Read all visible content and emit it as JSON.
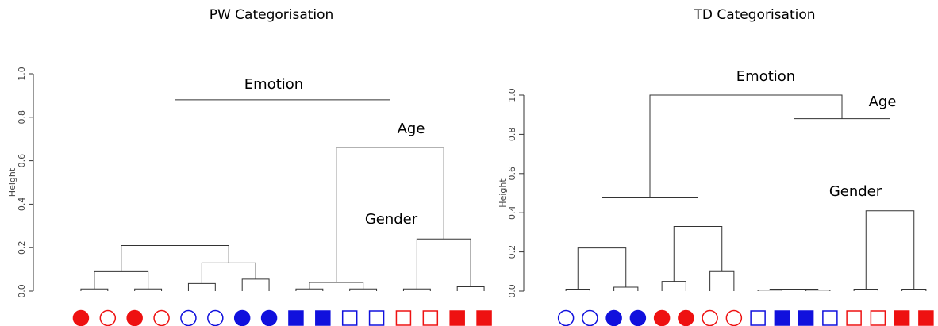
{
  "chart_data": [
    {
      "type": "dendrogram",
      "title": "PW Categorisation",
      "ylabel": "Height",
      "ylim": [
        0,
        1
      ],
      "yticks": [
        {
          "value": 0,
          "label": "0.0"
        },
        0.2,
        0.4,
        0.6,
        0.8,
        {
          "value": 1,
          "label": "1.0"
        }
      ],
      "annotations": [
        "Emotion",
        "Age",
        "Gender"
      ],
      "leaves": [
        {
          "shape": "circle",
          "fill": true,
          "color": "#ee1111"
        },
        {
          "shape": "circle",
          "fill": false,
          "color": "#ee1111"
        },
        {
          "shape": "circle",
          "fill": true,
          "color": "#ee1111"
        },
        {
          "shape": "circle",
          "fill": false,
          "color": "#ee1111"
        },
        {
          "shape": "circle",
          "fill": false,
          "color": "#1010dd"
        },
        {
          "shape": "circle",
          "fill": false,
          "color": "#1010dd"
        },
        {
          "shape": "circle",
          "fill": true,
          "color": "#1010dd"
        },
        {
          "shape": "circle",
          "fill": true,
          "color": "#1010dd"
        },
        {
          "shape": "square",
          "fill": true,
          "color": "#1010dd"
        },
        {
          "shape": "square",
          "fill": true,
          "color": "#1010dd"
        },
        {
          "shape": "square",
          "fill": false,
          "color": "#1010dd"
        },
        {
          "shape": "square",
          "fill": false,
          "color": "#1010dd"
        },
        {
          "shape": "square",
          "fill": false,
          "color": "#ee1111"
        },
        {
          "shape": "square",
          "fill": false,
          "color": "#ee1111"
        },
        {
          "shape": "square",
          "fill": true,
          "color": "#ee1111"
        },
        {
          "shape": "square",
          "fill": true,
          "color": "#ee1111"
        }
      ],
      "merges": [
        {
          "left": 0,
          "right": 1,
          "height": 0.01
        },
        {
          "left": 2,
          "right": 3,
          "height": 0.01
        },
        {
          "left": 16,
          "right": 17,
          "height": 0.09
        },
        {
          "left": 4,
          "right": 5,
          "height": 0.035
        },
        {
          "left": 6,
          "right": 7,
          "height": 0.055
        },
        {
          "left": 19,
          "right": 20,
          "height": 0.13
        },
        {
          "left": 18,
          "right": 21,
          "height": 0.21
        },
        {
          "left": 8,
          "right": 9,
          "height": 0.01
        },
        {
          "left": 10,
          "right": 11,
          "height": 0.01
        },
        {
          "left": 23,
          "right": 24,
          "height": 0.04
        },
        {
          "left": 12,
          "right": 13,
          "height": 0.01
        },
        {
          "left": 14,
          "right": 15,
          "height": 0.02
        },
        {
          "left": 26,
          "right": 27,
          "height": 0.24
        },
        {
          "left": 25,
          "right": 28,
          "height": 0.66
        },
        {
          "left": 22,
          "right": 29,
          "height": 0.88
        }
      ]
    },
    {
      "type": "dendrogram",
      "title": "TD Categorisation",
      "ylabel": "Height",
      "ylim": [
        0,
        1
      ],
      "yticks": [
        {
          "value": 0,
          "label": "0.0"
        },
        0.2,
        0.4,
        0.6,
        0.8,
        {
          "value": 1,
          "label": "1.0"
        }
      ],
      "annotations": [
        "Emotion",
        "Age",
        "Gender"
      ],
      "leaves": [
        {
          "shape": "circle",
          "fill": false,
          "color": "#1010dd"
        },
        {
          "shape": "circle",
          "fill": false,
          "color": "#1010dd"
        },
        {
          "shape": "circle",
          "fill": true,
          "color": "#1010dd"
        },
        {
          "shape": "circle",
          "fill": true,
          "color": "#1010dd"
        },
        {
          "shape": "circle",
          "fill": true,
          "color": "#ee1111"
        },
        {
          "shape": "circle",
          "fill": true,
          "color": "#ee1111"
        },
        {
          "shape": "circle",
          "fill": false,
          "color": "#ee1111"
        },
        {
          "shape": "circle",
          "fill": false,
          "color": "#ee1111"
        },
        {
          "shape": "square",
          "fill": false,
          "color": "#1010dd"
        },
        {
          "shape": "square",
          "fill": true,
          "color": "#1010dd"
        },
        {
          "shape": "square",
          "fill": true,
          "color": "#1010dd"
        },
        {
          "shape": "square",
          "fill": false,
          "color": "#1010dd"
        },
        {
          "shape": "square",
          "fill": false,
          "color": "#ee1111"
        },
        {
          "shape": "square",
          "fill": false,
          "color": "#ee1111"
        },
        {
          "shape": "square",
          "fill": true,
          "color": "#ee1111"
        },
        {
          "shape": "square",
          "fill": true,
          "color": "#ee1111"
        }
      ],
      "merges": [
        {
          "left": 0,
          "right": 1,
          "height": 0.01
        },
        {
          "left": 2,
          "right": 3,
          "height": 0.02
        },
        {
          "left": 16,
          "right": 17,
          "height": 0.22
        },
        {
          "left": 4,
          "right": 5,
          "height": 0.05
        },
        {
          "left": 6,
          "right": 7,
          "height": 0.1
        },
        {
          "left": 19,
          "right": 20,
          "height": 0.33
        },
        {
          "left": 18,
          "right": 21,
          "height": 0.48
        },
        {
          "left": 8,
          "right": 9,
          "height": 0.005
        },
        {
          "left": 10,
          "right": 11,
          "height": 0.005
        },
        {
          "left": 23,
          "right": 24,
          "height": 0.01
        },
        {
          "left": 12,
          "right": 13,
          "height": 0.01
        },
        {
          "left": 14,
          "right": 15,
          "height": 0.01
        },
        {
          "left": 26,
          "right": 27,
          "height": 0.41
        },
        {
          "left": 25,
          "right": 28,
          "height": 0.88
        },
        {
          "left": 22,
          "right": 29,
          "height": 1.0
        }
      ]
    }
  ]
}
